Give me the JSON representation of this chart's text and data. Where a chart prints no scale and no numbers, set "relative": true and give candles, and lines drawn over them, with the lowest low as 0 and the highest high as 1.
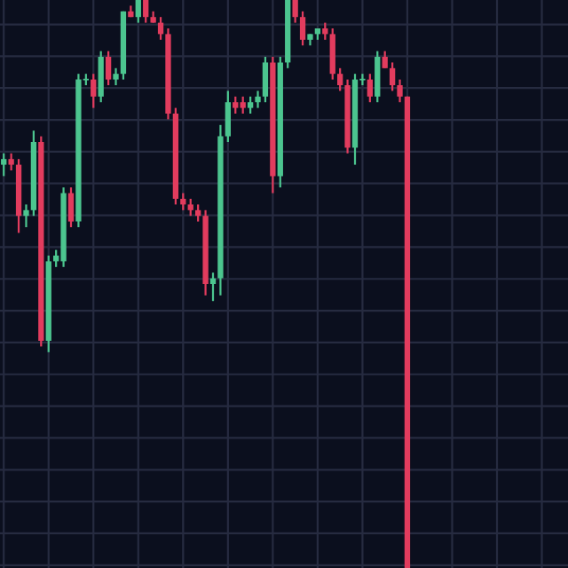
{
  "chart_data": {
    "type": "candlestick",
    "relative": true,
    "grid": true,
    "categories": [
      null,
      null,
      null,
      null,
      null,
      null,
      null,
      null,
      null,
      null,
      null,
      null,
      null,
      null,
      null,
      null,
      null,
      null,
      null,
      null,
      null,
      null,
      null,
      null,
      null,
      null,
      null,
      null,
      null,
      null,
      null,
      null,
      null,
      null,
      null,
      null,
      null,
      null,
      null,
      null,
      null,
      null,
      null,
      null,
      null,
      null,
      null,
      null,
      null,
      null,
      null,
      null,
      null,
      null,
      null,
      null,
      null,
      null,
      null,
      null,
      null,
      null,
      null,
      null,
      null,
      null,
      null,
      null,
      null,
      null,
      null,
      null,
      null,
      null,
      null,
      null
    ],
    "ohlc": [
      [
        0.71,
        0.73,
        0.69,
        0.72
      ],
      [
        0.72,
        0.73,
        0.7,
        0.71
      ],
      [
        0.71,
        0.72,
        0.59,
        0.62
      ],
      [
        0.62,
        0.64,
        0.6,
        0.63
      ],
      [
        0.63,
        0.77,
        0.62,
        0.75
      ],
      [
        0.75,
        0.76,
        0.39,
        0.4
      ],
      [
        0.4,
        0.55,
        0.38,
        0.54
      ],
      [
        0.54,
        0.56,
        0.53,
        0.55
      ],
      [
        0.54,
        0.67,
        0.53,
        0.66
      ],
      [
        0.66,
        0.67,
        0.6,
        0.61
      ],
      [
        0.61,
        0.87,
        0.6,
        0.86
      ],
      [
        0.86,
        0.87,
        0.85,
        0.86
      ],
      [
        0.86,
        0.87,
        0.81,
        0.83
      ],
      [
        0.83,
        0.91,
        0.82,
        0.9
      ],
      [
        0.9,
        0.91,
        0.85,
        0.86
      ],
      [
        0.86,
        0.88,
        0.85,
        0.87
      ],
      [
        0.87,
        0.98,
        0.86,
        0.98
      ],
      [
        0.98,
        0.99,
        0.97,
        0.97
      ],
      [
        0.97,
        1.0,
        0.96,
        1.0
      ],
      [
        1.0,
        1.0,
        0.96,
        0.97
      ],
      [
        0.97,
        0.98,
        0.96,
        0.96
      ],
      [
        0.96,
        0.97,
        0.93,
        0.94
      ],
      [
        0.94,
        0.95,
        0.79,
        0.8
      ],
      [
        0.8,
        0.81,
        0.64,
        0.65
      ],
      [
        0.65,
        0.66,
        0.63,
        0.64
      ],
      [
        0.64,
        0.65,
        0.62,
        0.63
      ],
      [
        0.63,
        0.64,
        0.61,
        0.62
      ],
      [
        0.62,
        0.63,
        0.48,
        0.5
      ],
      [
        0.5,
        0.52,
        0.47,
        0.51
      ],
      [
        0.51,
        0.78,
        0.48,
        0.76
      ],
      [
        0.76,
        0.84,
        0.75,
        0.82
      ],
      [
        0.82,
        0.83,
        0.8,
        0.81
      ],
      [
        0.82,
        0.83,
        0.8,
        0.81
      ],
      [
        0.81,
        0.83,
        0.8,
        0.82
      ],
      [
        0.82,
        0.84,
        0.81,
        0.83
      ],
      [
        0.83,
        0.9,
        0.82,
        0.89
      ],
      [
        0.89,
        0.9,
        0.66,
        0.69
      ],
      [
        0.69,
        0.9,
        0.67,
        0.89
      ],
      [
        0.89,
        1.0,
        0.88,
        1.0
      ],
      [
        1.0,
        1.0,
        0.96,
        0.97
      ],
      [
        0.97,
        0.98,
        0.92,
        0.93
      ],
      [
        0.93,
        0.94,
        0.92,
        0.94
      ],
      [
        0.94,
        0.95,
        0.93,
        0.95
      ],
      [
        0.95,
        0.96,
        0.93,
        0.94
      ],
      [
        0.94,
        0.95,
        0.86,
        0.87
      ],
      [
        0.87,
        0.88,
        0.84,
        0.85
      ],
      [
        0.85,
        0.86,
        0.73,
        0.74
      ],
      [
        0.74,
        0.87,
        0.71,
        0.86
      ],
      [
        0.86,
        0.87,
        0.85,
        0.86
      ],
      [
        0.86,
        0.87,
        0.82,
        0.83
      ],
      [
        0.83,
        0.91,
        0.82,
        0.9
      ],
      [
        0.9,
        0.91,
        0.88,
        0.88
      ],
      [
        0.88,
        0.89,
        0.84,
        0.85
      ],
      [
        0.85,
        0.86,
        0.82,
        0.83
      ],
      [
        0.83,
        0.83,
        0.0,
        0.0
      ],
      null,
      null,
      null,
      null,
      null,
      null,
      null,
      null,
      null,
      null,
      null,
      null,
      null,
      null,
      null,
      null,
      null,
      null,
      null,
      null,
      null
    ],
    "colors": [
      "#4cc58f",
      "#e23c5e",
      "#e23c5e",
      "#4cc58f",
      "#4cc58f",
      "#e23c5e",
      "#4cc58f",
      "#4cc58f",
      "#4cc58f",
      "#e23c5e",
      "#4cc58f",
      "#4cc58f",
      "#e23c5e",
      "#4cc58f",
      "#e23c5e",
      "#4cc58f",
      "#4cc58f",
      "#e23c5e",
      "#4cc58f",
      "#e23c5e",
      "#e23c5e",
      "#e23c5e",
      "#e23c5e",
      "#e23c5e",
      "#e23c5e",
      "#e23c5e",
      "#e23c5e",
      "#e23c5e",
      "#4cc58f",
      "#4cc58f",
      "#4cc58f",
      "#e23c5e",
      "#e23c5e",
      "#4cc58f",
      "#4cc58f",
      "#4cc58f",
      "#e23c5e",
      "#4cc58f",
      "#4cc58f",
      "#e23c5e",
      "#e23c5e",
      "#4cc58f",
      "#4cc58f",
      "#e23c5e",
      "#e23c5e",
      "#e23c5e",
      "#e23c5e",
      "#4cc58f",
      "#4cc58f",
      "#e23c5e",
      "#4cc58f",
      "#e23c5e",
      "#e23c5e",
      "#e23c5e",
      "#e23c5e",
      null,
      null,
      null,
      null,
      null,
      null,
      null,
      null,
      null,
      null,
      null,
      null,
      null,
      null,
      null,
      null,
      null,
      null,
      null,
      null,
      null
    ]
  }
}
